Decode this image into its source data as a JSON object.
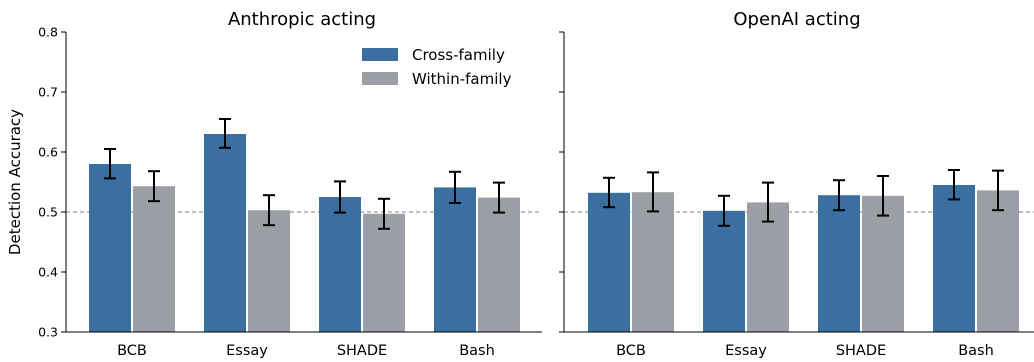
{
  "chart_data": {
    "type": "bar",
    "ylabel": "Detection Accuracy",
    "ylim": [
      0.3,
      0.8
    ],
    "yticks": [
      "0.3",
      "0.4",
      "0.5",
      "0.6",
      "0.7",
      "0.8"
    ],
    "reference_line": 0.5,
    "categories": [
      "BCB",
      "Essay",
      "SHADE",
      "Bash"
    ],
    "legend": {
      "placement": "top-right of left panel"
    },
    "series_styles": [
      {
        "name": "Cross-family",
        "color": "#3b6fa0"
      },
      {
        "name": "Within-family",
        "color": "#9ca0a6"
      }
    ],
    "panels": [
      {
        "title": "Anthropic acting",
        "series": [
          {
            "name": "Cross-family",
            "values": [
              0.58,
              0.63,
              0.525,
              0.541
            ],
            "err_low": [
              0.556,
              0.607,
              0.499,
              0.515
            ],
            "err_high": [
              0.605,
              0.655,
              0.551,
              0.567
            ]
          },
          {
            "name": "Within-family",
            "values": [
              0.543,
              0.503,
              0.497,
              0.524
            ],
            "err_low": [
              0.518,
              0.478,
              0.472,
              0.499
            ],
            "err_high": [
              0.568,
              0.528,
              0.522,
              0.549
            ]
          }
        ]
      },
      {
        "title": "OpenAI acting",
        "series": [
          {
            "name": "Cross-family",
            "values": [
              0.532,
              0.502,
              0.528,
              0.545
            ],
            "err_low": [
              0.508,
              0.477,
              0.503,
              0.521
            ],
            "err_high": [
              0.557,
              0.527,
              0.553,
              0.57
            ]
          },
          {
            "name": "Within-family",
            "values": [
              0.533,
              0.516,
              0.527,
              0.536
            ],
            "err_low": [
              0.501,
              0.484,
              0.494,
              0.503
            ],
            "err_high": [
              0.566,
              0.549,
              0.56,
              0.569
            ]
          }
        ]
      }
    ]
  }
}
